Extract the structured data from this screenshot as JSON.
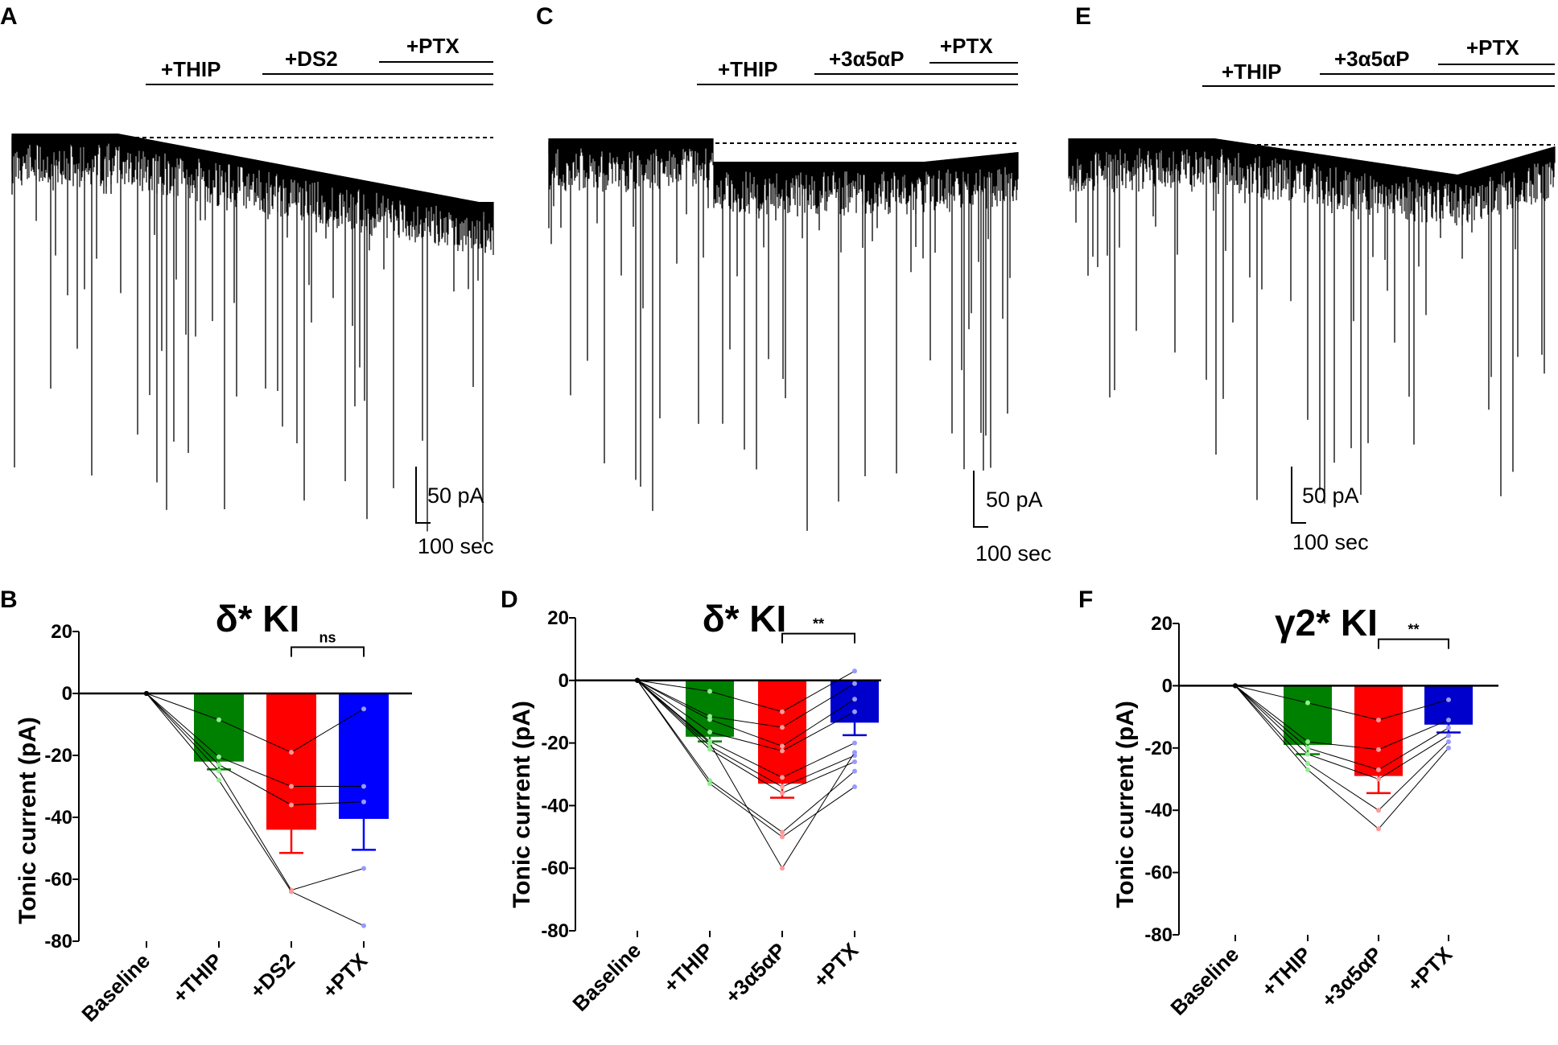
{
  "panels": {
    "A": {
      "letter": "A",
      "drugs": [
        "+THIP",
        "+DS2",
        "+PTX"
      ],
      "scale_y": "50 pA",
      "scale_x": "100 sec"
    },
    "C": {
      "letter": "C",
      "drugs": [
        "+THIP",
        "+3α5αP",
        "+PTX"
      ],
      "scale_y": "50 pA",
      "scale_x": "100 sec"
    },
    "E": {
      "letter": "E",
      "drugs": [
        "+THIP",
        "+3α5αP",
        "+PTX"
      ],
      "scale_y": "50 pA",
      "scale_x": "100 sec"
    }
  },
  "chart_data": [
    {
      "id": "B",
      "letter": "B",
      "type": "bar",
      "title": "δ* KI",
      "ylabel": "Tonic current (pA)",
      "ylim": [
        -80,
        20
      ],
      "yticks": [
        20,
        0,
        -20,
        -40,
        -60,
        -80
      ],
      "categories": [
        "Baseline",
        "+THIP",
        "+DS2",
        "+PTX"
      ],
      "values": [
        0,
        -22,
        -44,
        -40.5
      ],
      "errors": [
        0,
        2.5,
        7.5,
        10
      ],
      "colors": [
        "#ffffff",
        "#008000",
        "#ff0000",
        "#0000ff"
      ],
      "point_colors": [
        "#000000",
        "#90ee90",
        "#ff9999",
        "#9999ff"
      ],
      "points": [
        [
          0,
          -8.5,
          -19,
          -5
        ],
        [
          0,
          -20.5,
          -30,
          -30
        ],
        [
          0,
          -23,
          -36,
          -35
        ],
        [
          0,
          -25,
          -63.5,
          -56.5
        ],
        [
          0,
          -28,
          -64,
          -75
        ]
      ],
      "significance": {
        "from": 2,
        "to": 3,
        "label": "ns"
      }
    },
    {
      "id": "D",
      "letter": "D",
      "type": "bar",
      "title": "δ* KI",
      "ylabel": "Tonic current (pA)",
      "ylim": [
        -80,
        20
      ],
      "yticks": [
        20,
        0,
        -20,
        -40,
        -60,
        -80
      ],
      "categories": [
        "Baseline",
        "+THIP",
        "+3α5αP",
        "+PTX"
      ],
      "values": [
        0,
        -18,
        -33,
        -13.5
      ],
      "errors": [
        0,
        1.5,
        4.5,
        4
      ],
      "colors": [
        "#ffffff",
        "#008000",
        "#ff0000",
        "#0000cd"
      ],
      "point_colors": [
        "#000000",
        "#90ee90",
        "#ff9999",
        "#9999ff"
      ],
      "points": [
        [
          0,
          -3.5,
          -10,
          3
        ],
        [
          0,
          -11.5,
          -15,
          -1
        ],
        [
          0,
          -12.5,
          -21,
          -6
        ],
        [
          0,
          -16.5,
          -22.5,
          -10
        ],
        [
          0,
          -19.5,
          -31,
          -20
        ],
        [
          0,
          -21,
          -34,
          -24
        ],
        [
          0,
          -22,
          -36,
          -26
        ],
        [
          0,
          -32,
          -48.5,
          -29
        ],
        [
          0,
          -33,
          -50,
          -34
        ],
        [
          0,
          -20,
          -60,
          -23
        ]
      ],
      "significance": {
        "from": 2,
        "to": 3,
        "label": "**"
      }
    },
    {
      "id": "F",
      "letter": "F",
      "type": "bar",
      "title": "γ2* KI",
      "ylabel": "Tonic current (pA)",
      "ylim": [
        -80,
        20
      ],
      "yticks": [
        20,
        0,
        -20,
        -40,
        -60,
        -80
      ],
      "categories": [
        "Baseline",
        "+THIP",
        "+3α5αP",
        "+PTX"
      ],
      "values": [
        0,
        -19,
        -29,
        -12.5
      ],
      "errors": [
        0,
        3,
        5.5,
        2.5
      ],
      "colors": [
        "#ffffff",
        "#008000",
        "#ff0000",
        "#0000cd"
      ],
      "point_colors": [
        "#000000",
        "#90ee90",
        "#ff9999",
        "#9999ff"
      ],
      "points": [
        [
          0,
          -5.5,
          -11,
          -4.5
        ],
        [
          0,
          -18,
          -20.5,
          -11
        ],
        [
          0,
          -20,
          -27,
          -13.5
        ],
        [
          0,
          -22,
          -30,
          -16
        ],
        [
          0,
          -25,
          -40,
          -18
        ],
        [
          0,
          -27,
          -46,
          -20
        ]
      ],
      "significance": {
        "from": 2,
        "to": 3,
        "label": "**"
      }
    }
  ]
}
